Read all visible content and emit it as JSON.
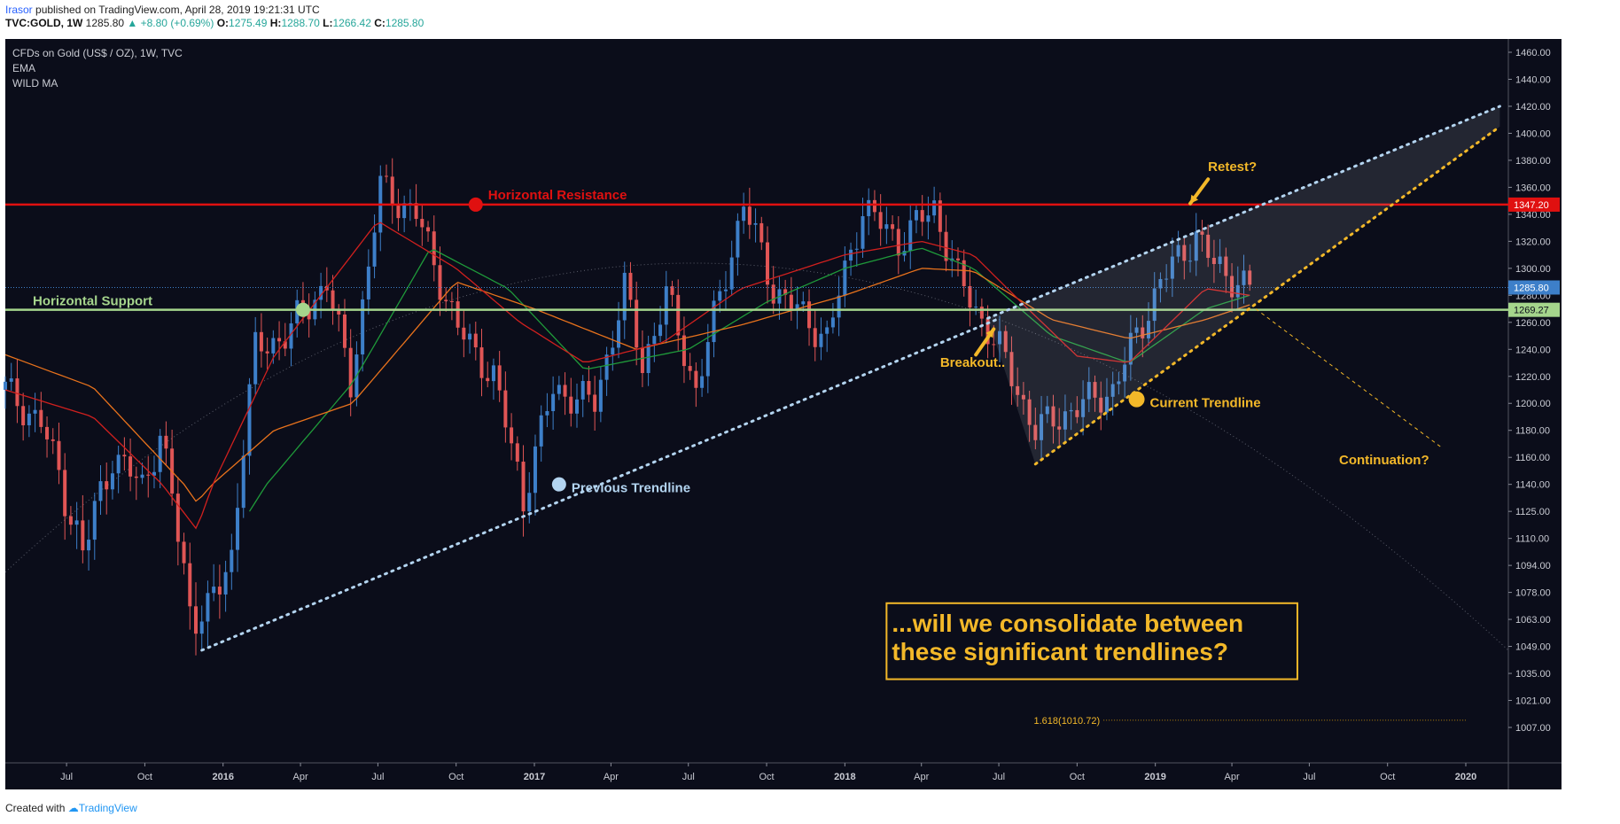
{
  "header": {
    "user": "Irasor",
    "published": "published on TradingView.com, April 28, 2019 19:21:31 UTC",
    "symbol": "TVC:GOLD, 1W",
    "last": "1285.80",
    "change": "▲ +8.80 (+0.69%)",
    "o_label": "O:",
    "o": "1275.49",
    "h_label": "H:",
    "h": "1288.70",
    "l_label": "L:",
    "l": "1266.42",
    "c_label": "C:",
    "c": "1285.80"
  },
  "footer": {
    "created_with": "Created with",
    "brand": "TradingView"
  },
  "colors": {
    "background": "#0b0d1a",
    "bull": "#3d7fc9",
    "bear": "#e05555",
    "resistance": "#e01010",
    "support": "#a5d58c",
    "annotation": "#f3b829",
    "trendline_prev": "#b3d4f0",
    "ema_fast": "#1f9a3a",
    "ema_slow": "#e8721c",
    "wild_ma": "#d0201e"
  },
  "chart_data": {
    "type": "candlestick",
    "title": "CFDs on Gold (US$ / OZ), 1W, TVC",
    "indicators": [
      "EMA",
      "WILD MA"
    ],
    "y_ticks": [
      "1460.00",
      "1440.00",
      "1420.00",
      "1400.00",
      "1380.00",
      "1360.00",
      "1340.00",
      "1320.00",
      "1300.00",
      "1280.00",
      "1260.00",
      "1240.00",
      "1220.00",
      "1200.00",
      "1180.00",
      "1160.00",
      "1140.00",
      "1125.00",
      "1110.00",
      "1094.00",
      "1078.00",
      "1063.00",
      "1049.00",
      "1035.00",
      "1021.00",
      "1007.00"
    ],
    "x_ticks": [
      "Jul",
      "Oct",
      "2016",
      "Apr",
      "Jul",
      "Oct",
      "2017",
      "Apr",
      "Jul",
      "Oct",
      "2018",
      "Apr",
      "Jul",
      "Oct",
      "2019",
      "Apr",
      "Jul",
      "Oct",
      "2020"
    ],
    "x_range": [
      "2015-04-20",
      "2020-02-20"
    ],
    "price_tags": [
      {
        "value": "1347.20",
        "color": "#e01010"
      },
      {
        "value": "1285.80",
        "color": "#3d7fc9"
      },
      {
        "value": "1269.27",
        "color": "#a5d58c"
      }
    ],
    "fib_label": "1.618(1010.72)",
    "series": [
      {
        "name": "Gold weekly OHLC (approx. close path)",
        "anchors": [
          [
            "2015-04-20",
            1210
          ],
          [
            "2015-06-01",
            1185
          ],
          [
            "2015-07-20",
            1100
          ],
          [
            "2015-08-24",
            1160
          ],
          [
            "2015-09-28",
            1140
          ],
          [
            "2015-10-19",
            1175
          ],
          [
            "2015-11-23",
            1070
          ],
          [
            "2015-12-14",
            1065
          ],
          [
            "2016-01-11",
            1100
          ],
          [
            "2016-02-08",
            1240
          ],
          [
            "2016-03-14",
            1250
          ],
          [
            "2016-05-02",
            1290
          ],
          [
            "2016-05-30",
            1215
          ],
          [
            "2016-07-04",
            1360
          ],
          [
            "2016-08-15",
            1340
          ],
          [
            "2016-10-03",
            1255
          ],
          [
            "2016-11-14",
            1220
          ],
          [
            "2016-12-19",
            1133
          ],
          [
            "2017-01-23",
            1210
          ],
          [
            "2017-03-13",
            1200
          ],
          [
            "2017-04-17",
            1285
          ],
          [
            "2017-05-08",
            1228
          ],
          [
            "2017-06-05",
            1280
          ],
          [
            "2017-07-10",
            1210
          ],
          [
            "2017-09-04",
            1348
          ],
          [
            "2017-10-09",
            1285
          ],
          [
            "2017-12-11",
            1248
          ],
          [
            "2018-01-22",
            1345
          ],
          [
            "2018-03-05",
            1320
          ],
          [
            "2018-04-16",
            1345
          ],
          [
            "2018-05-14",
            1292
          ],
          [
            "2018-07-02",
            1240
          ],
          [
            "2018-08-13",
            1180
          ],
          [
            "2018-09-24",
            1195
          ],
          [
            "2018-11-12",
            1210
          ],
          [
            "2019-01-07",
            1290
          ],
          [
            "2019-02-18",
            1325
          ],
          [
            "2019-03-11",
            1302
          ],
          [
            "2019-04-22",
            1285
          ]
        ]
      },
      {
        "name": "EMA",
        "anchors": [
          [
            "2016-02-01",
            1125
          ],
          [
            "2016-06-01",
            1215
          ],
          [
            "2016-09-01",
            1315
          ],
          [
            "2016-12-01",
            1285
          ],
          [
            "2017-03-01",
            1225
          ],
          [
            "2017-07-01",
            1240
          ],
          [
            "2017-10-01",
            1275
          ],
          [
            "2018-01-01",
            1300
          ],
          [
            "2018-04-01",
            1315
          ],
          [
            "2018-06-01",
            1300
          ],
          [
            "2018-09-01",
            1250
          ],
          [
            "2018-12-01",
            1230
          ],
          [
            "2019-03-01",
            1270
          ],
          [
            "2019-04-22",
            1280
          ]
        ]
      },
      {
        "name": "WILD MA (orange)",
        "anchors": [
          [
            "2015-04-20",
            1236
          ],
          [
            "2015-08-01",
            1212
          ],
          [
            "2015-12-01",
            1130
          ],
          [
            "2016-03-01",
            1180
          ],
          [
            "2016-06-01",
            1200
          ],
          [
            "2016-10-01",
            1290
          ],
          [
            "2017-01-01",
            1270
          ],
          [
            "2017-05-01",
            1240
          ],
          [
            "2017-09-01",
            1258
          ],
          [
            "2018-01-01",
            1280
          ],
          [
            "2018-04-01",
            1300
          ],
          [
            "2018-06-01",
            1298
          ],
          [
            "2018-09-01",
            1262
          ],
          [
            "2018-12-01",
            1248
          ],
          [
            "2019-03-01",
            1262
          ],
          [
            "2019-04-22",
            1273
          ]
        ]
      },
      {
        "name": "WILD MA (red)",
        "anchors": [
          [
            "2015-04-20",
            1210
          ],
          [
            "2015-08-01",
            1190
          ],
          [
            "2015-12-01",
            1115
          ],
          [
            "2016-03-01",
            1235
          ],
          [
            "2016-07-01",
            1335
          ],
          [
            "2016-10-01",
            1300
          ],
          [
            "2016-12-15",
            1260
          ],
          [
            "2017-03-01",
            1230
          ],
          [
            "2017-06-01",
            1245
          ],
          [
            "2017-09-01",
            1285
          ],
          [
            "2018-01-01",
            1310
          ],
          [
            "2018-04-01",
            1320
          ],
          [
            "2018-06-01",
            1310
          ],
          [
            "2018-08-01",
            1272
          ],
          [
            "2018-10-01",
            1235
          ],
          [
            "2018-12-01",
            1230
          ],
          [
            "2019-03-01",
            1285
          ],
          [
            "2019-04-22",
            1280
          ]
        ]
      }
    ],
    "lines": {
      "resistance": 1347.2,
      "support": 1269.27,
      "prev_trendline": [
        [
          "2015-12-07",
          1047
        ],
        [
          "2018-07-02",
          1263
        ]
      ],
      "upper_channel": [
        [
          "2018-06-18",
          1263
        ],
        [
          "2020-02-10",
          1420
        ]
      ],
      "lower_channel": [
        [
          "2018-08-13",
          1155
        ],
        [
          "2020-02-10",
          1405
        ]
      ],
      "continuation": [
        [
          "2019-04-29",
          1270
        ],
        [
          "2019-12-02",
          1168
        ]
      ]
    },
    "annotations": [
      {
        "text": "Horizontal Resistance",
        "color": "#e01010"
      },
      {
        "text": "Horizontal Support",
        "color": "#a5d58c"
      },
      {
        "text": "Previous Trendline",
        "color": "#b3d4f0"
      },
      {
        "text": "Current Trendline",
        "color": "#f3b829"
      },
      {
        "text": "Breakout..",
        "color": "#f3b829"
      },
      {
        "text": "Retest?",
        "color": "#f3b829"
      },
      {
        "text": "Continuation?",
        "color": "#f3b829"
      }
    ],
    "callout": [
      "...will we consolidate between",
      "these significant trendlines?"
    ]
  }
}
